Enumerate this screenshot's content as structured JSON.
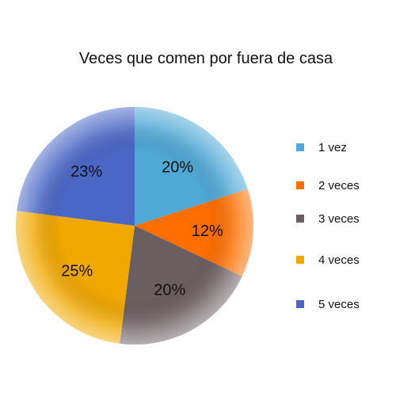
{
  "chart_data": {
    "type": "pie",
    "title": "Veces que comen por fuera de casa",
    "categories": [
      "1 vez",
      "2 veces",
      "3 veces",
      "4 veces",
      "5 veces"
    ],
    "values": [
      20,
      12,
      20,
      25,
      23
    ],
    "labels": [
      "20%",
      "12%",
      "20%",
      "25%",
      "23%"
    ],
    "colors": [
      "#4fa8d6",
      "#ff6f00",
      "#6b5e61",
      "#f0a800",
      "#4a67c6"
    ],
    "legend_position": "right",
    "start_angle": "12 o'clock",
    "direction": "clockwise"
  }
}
